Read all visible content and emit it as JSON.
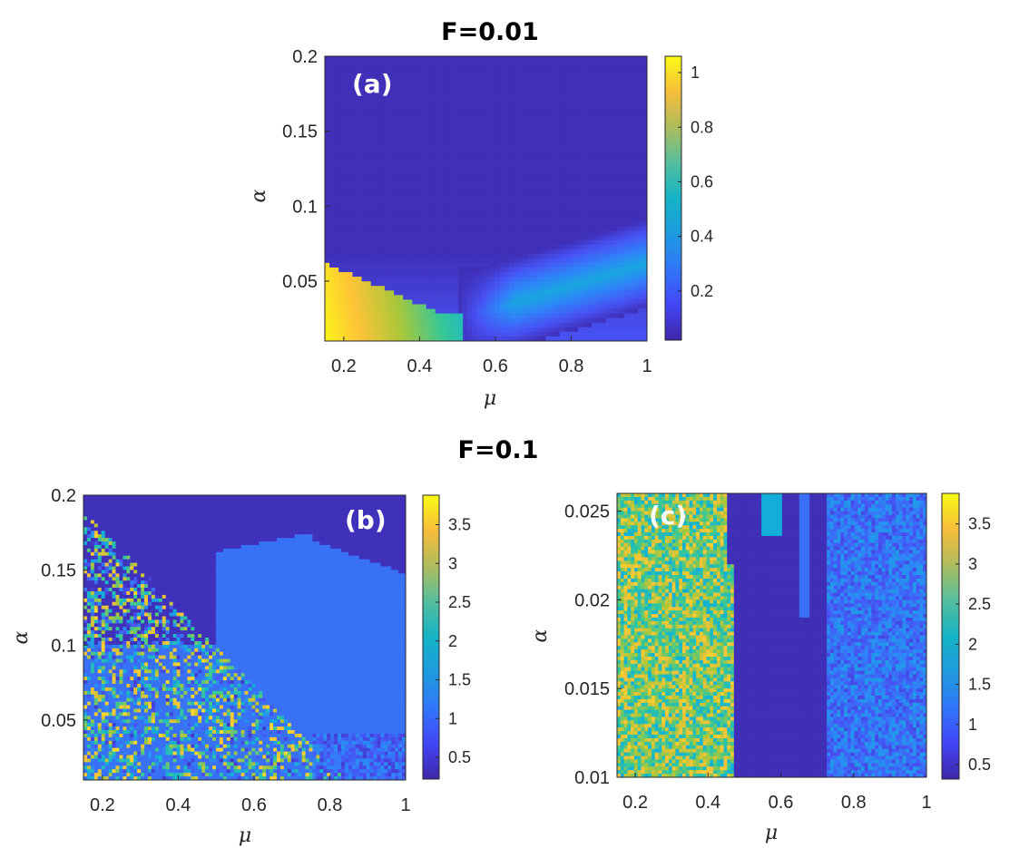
{
  "figure": {
    "top_title": "F=0.01",
    "middle_title": "F=0.1"
  },
  "colors": {
    "colormap": "parula",
    "background": "#ffffff",
    "panel_label": "#ffffff"
  },
  "chart_data": [
    {
      "type": "heatmap",
      "panel": "(a)",
      "title": "F=0.01",
      "xlabel": "μ",
      "ylabel": "α",
      "xlim": [
        0.15,
        1
      ],
      "ylim": [
        0.01,
        0.2
      ],
      "xticks": [
        "0.2",
        "0.4",
        "0.6",
        "0.8",
        "1"
      ],
      "xtick_values": [
        0.2,
        0.4,
        0.6,
        0.8,
        1
      ],
      "yticks": [
        "0.05",
        "0.1",
        "0.15",
        "0.2"
      ],
      "ytick_values": [
        0.05,
        0.1,
        0.15,
        0.2
      ],
      "clim": [
        0.02,
        1.06
      ],
      "colorbar_ticks": [
        "0.2",
        "0.4",
        "0.6",
        "0.8",
        "1"
      ],
      "colorbar_tick_values": [
        0.2,
        0.4,
        0.6,
        0.8,
        1
      ],
      "grid": false,
      "regions": [
        {
          "description": "background",
          "value": 0.05
        },
        {
          "description": "bottom-left region below boundary",
          "mu_range": [
            0.15,
            0.52
          ],
          "value_range": [
            0.55,
            1.05
          ]
        },
        {
          "description": "band along lower right",
          "mu_range": [
            0.5,
            1.0
          ],
          "value_range": [
            0.35,
            0.55
          ]
        }
      ]
    },
    {
      "type": "heatmap",
      "panel": "(b)",
      "title": "F=0.1",
      "xlabel": "μ",
      "ylabel": "α",
      "xlim": [
        0.15,
        1
      ],
      "ylim": [
        0.01,
        0.2
      ],
      "xticks": [
        "0.2",
        "0.4",
        "0.6",
        "0.8",
        "1"
      ],
      "xtick_values": [
        0.2,
        0.4,
        0.6,
        0.8,
        1
      ],
      "yticks": [
        "0.05",
        "0.1",
        "0.15",
        "0.2"
      ],
      "ytick_values": [
        0.05,
        0.1,
        0.15,
        0.2
      ],
      "clim": [
        0.22,
        3.88
      ],
      "colorbar_ticks": [
        "0.5",
        "1",
        "1.5",
        "2",
        "2.5",
        "3",
        "3.5"
      ],
      "colorbar_tick_values": [
        0.5,
        1,
        1.5,
        2,
        2.5,
        3,
        3.5
      ],
      "grid": false,
      "regions": [
        {
          "description": "top dark region",
          "value": 0.35
        },
        {
          "description": "plateau",
          "value": 1.05
        },
        {
          "description": "scattered noisy region left",
          "value_range": [
            0.3,
            3.8
          ]
        },
        {
          "description": "low region right bottom",
          "value": 0.6
        }
      ]
    },
    {
      "type": "heatmap",
      "panel": "(c)",
      "xlabel": "μ",
      "ylabel": "α",
      "xlim": [
        0.15,
        1
      ],
      "ylim": [
        0.01,
        0.026
      ],
      "xticks": [
        "0.2",
        "0.4",
        "0.6",
        "0.8",
        "1"
      ],
      "xtick_values": [
        0.2,
        0.4,
        0.6,
        0.8,
        1
      ],
      "yticks": [
        "0.01",
        "0.015",
        "0.02",
        "0.025"
      ],
      "ytick_values": [
        0.01,
        0.015,
        0.02,
        0.025
      ],
      "clim": [
        0.32,
        3.88
      ],
      "colorbar_ticks": [
        "0.5",
        "1",
        "1.5",
        "2",
        "2.5",
        "3",
        "3.5"
      ],
      "colorbar_tick_values": [
        0.5,
        1,
        1.5,
        2,
        2.5,
        3,
        3.5
      ],
      "grid": false,
      "regions": [
        {
          "description": "left noisy band",
          "mu_range": [
            0.15,
            0.45
          ],
          "value_range": [
            1.8,
            3.5
          ]
        },
        {
          "description": "dark middle",
          "mu_range": [
            0.45,
            0.73
          ],
          "value": 0.4
        },
        {
          "description": "right noisy band",
          "mu_range": [
            0.73,
            1.0
          ],
          "value_range": [
            0.7,
            1.6
          ]
        }
      ]
    }
  ]
}
